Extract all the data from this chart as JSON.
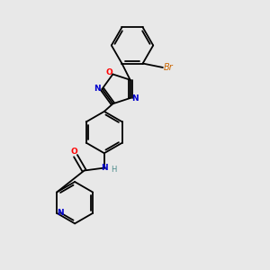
{
  "background_color": "#e8e8e8",
  "bond_color": "#000000",
  "atom_colors": {
    "N": "#0000cc",
    "O": "#ff0000",
    "Br": "#cc6600",
    "H": "#4a8a8a"
  },
  "figsize": [
    3.0,
    3.0
  ],
  "dpi": 100,
  "lw": 1.3,
  "fs": 6.5
}
